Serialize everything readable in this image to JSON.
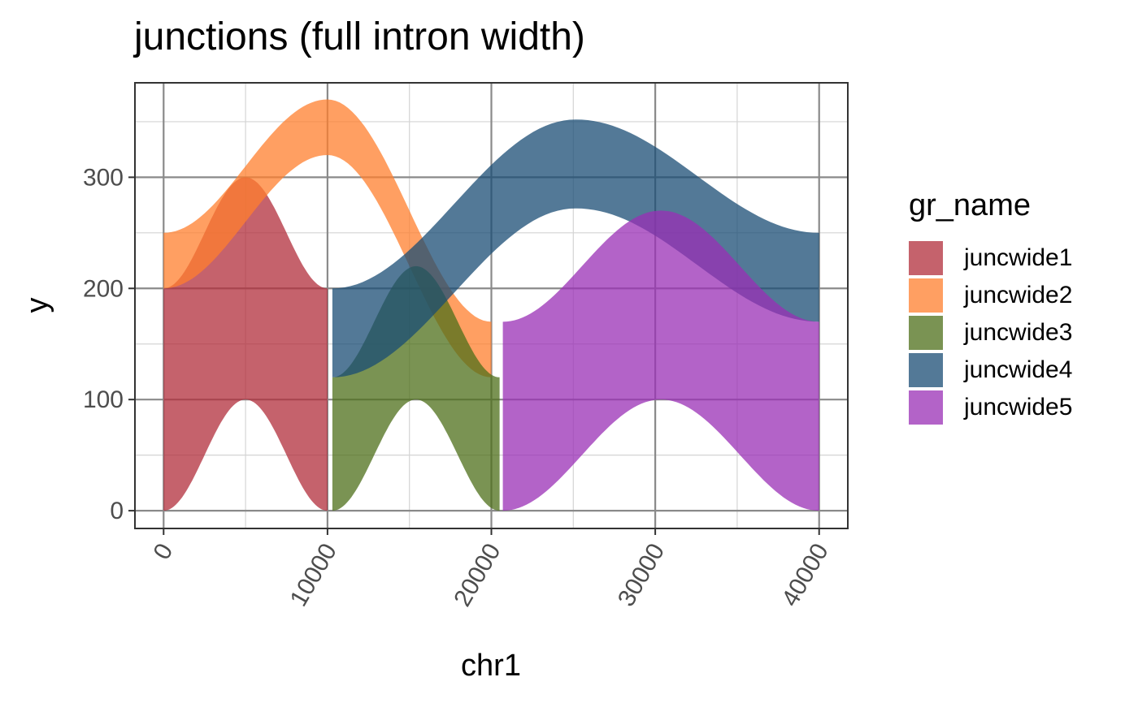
{
  "chart_data": {
    "type": "area",
    "title": "junctions (full intron width)",
    "xlabel": "chr1",
    "ylabel": "y",
    "xlim": [
      -1750,
      41750
    ],
    "ylim": [
      -16,
      385
    ],
    "x_ticks": [
      0,
      10000,
      20000,
      30000,
      40000
    ],
    "x_tick_labels": [
      "0",
      "10000",
      "20000",
      "30000",
      "40000"
    ],
    "y_ticks": [
      0,
      100,
      200,
      300
    ],
    "y_tick_labels": [
      "0",
      "100",
      "200",
      "300"
    ],
    "x_minor_ticks": [
      5000,
      15000,
      25000,
      35000
    ],
    "y_minor_ticks": [
      50,
      150,
      250,
      350
    ],
    "grid": true,
    "legend_title": "gr_name",
    "legend_position": "right",
    "fill_opacity": 0.75,
    "series": [
      {
        "name": "juncwide1",
        "color": "#B22D3B",
        "ribbons": [
          {
            "x0": 0,
            "x1": 10000,
            "ymin": [
              0,
              100,
              0
            ],
            "ymax": [
              200,
              300,
              200
            ]
          }
        ]
      },
      {
        "name": "juncwide2",
        "color": "#FF7F2E",
        "ribbons": [
          {
            "x0": 0,
            "x1": 20000,
            "ymin": [
              200,
              320,
              120
            ],
            "ymax": [
              250,
              370,
              170
            ]
          }
        ]
      },
      {
        "name": "juncwide3",
        "color": "#4E6F1A",
        "ribbons": [
          {
            "x0": 10300,
            "x1": 20500,
            "ymin": [
              0,
              100,
              0
            ],
            "ymax": [
              120,
              220,
              120
            ]
          }
        ]
      },
      {
        "name": "juncwide4",
        "color": "#1A4C74",
        "ribbons": [
          {
            "x0": 10300,
            "x1": 40000,
            "ymin": [
              120,
              272,
              170
            ],
            "ymax": [
              200,
              352,
              250
            ]
          }
        ]
      },
      {
        "name": "juncwide5",
        "color": "#9A2FB6",
        "ribbons": [
          {
            "x0": 20700,
            "x1": 40000,
            "ymin": [
              0,
              100,
              0
            ],
            "ymax": [
              170,
              270,
              170
            ]
          }
        ]
      }
    ]
  }
}
